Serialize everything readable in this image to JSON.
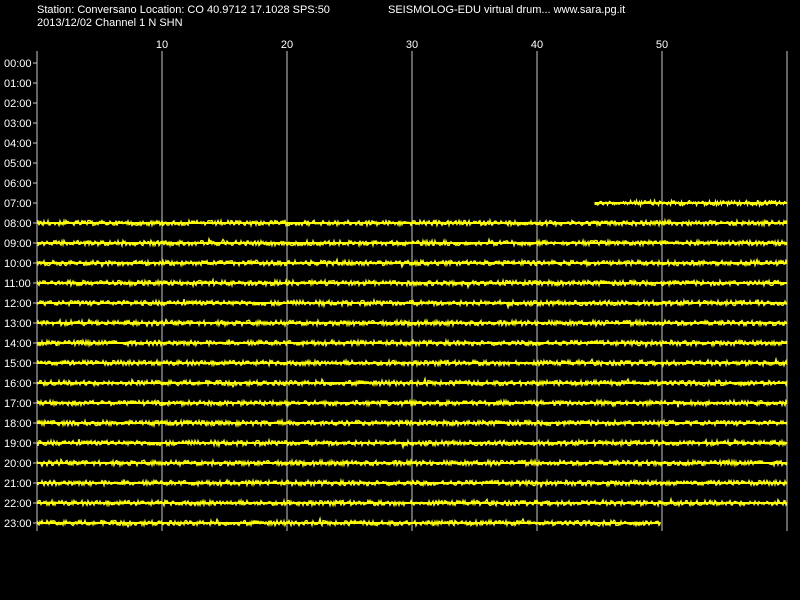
{
  "header": {
    "station_line": "Station: Conversano Location: CO 40.9712 17.1028 SPS:50",
    "app_line": "SEISMOLOG-EDU virtual drum... www.sara.pg.it",
    "date_channel_line": "2013/12/02  Channel 1 N SHN"
  },
  "axis": {
    "minute_ticks": [
      "10",
      "20",
      "30",
      "40",
      "50"
    ],
    "minute_range": [
      0,
      60
    ]
  },
  "rows": [
    {
      "hour": "00:00",
      "start_min": null,
      "end_min": null
    },
    {
      "hour": "01:00",
      "start_min": null,
      "end_min": null
    },
    {
      "hour": "02:00",
      "start_min": null,
      "end_min": null
    },
    {
      "hour": "03:00",
      "start_min": null,
      "end_min": null
    },
    {
      "hour": "04:00",
      "start_min": null,
      "end_min": null
    },
    {
      "hour": "05:00",
      "start_min": null,
      "end_min": null
    },
    {
      "hour": "06:00",
      "start_min": null,
      "end_min": null
    },
    {
      "hour": "07:00",
      "start_min": 44.6,
      "end_min": 60
    },
    {
      "hour": "08:00",
      "start_min": 0,
      "end_min": 60
    },
    {
      "hour": "09:00",
      "start_min": 0,
      "end_min": 60
    },
    {
      "hour": "10:00",
      "start_min": 0,
      "end_min": 60
    },
    {
      "hour": "11:00",
      "start_min": 0,
      "end_min": 60
    },
    {
      "hour": "12:00",
      "start_min": 0,
      "end_min": 60
    },
    {
      "hour": "13:00",
      "start_min": 0,
      "end_min": 60
    },
    {
      "hour": "14:00",
      "start_min": 0,
      "end_min": 60
    },
    {
      "hour": "15:00",
      "start_min": 0,
      "end_min": 60
    },
    {
      "hour": "16:00",
      "start_min": 0,
      "end_min": 60
    },
    {
      "hour": "17:00",
      "start_min": 0,
      "end_min": 60
    },
    {
      "hour": "18:00",
      "start_min": 0,
      "end_min": 60
    },
    {
      "hour": "19:00",
      "start_min": 0,
      "end_min": 60
    },
    {
      "hour": "20:00",
      "start_min": 0,
      "end_min": 60
    },
    {
      "hour": "21:00",
      "start_min": 0,
      "end_min": 60
    },
    {
      "hour": "22:00",
      "start_min": 0,
      "end_min": 60
    },
    {
      "hour": "23:00",
      "start_min": 0,
      "end_min": 49.9
    }
  ],
  "colors": {
    "background": "#000000",
    "text": "#ffffff",
    "trace": "#ffff00",
    "grid": "#c8c8c8"
  }
}
